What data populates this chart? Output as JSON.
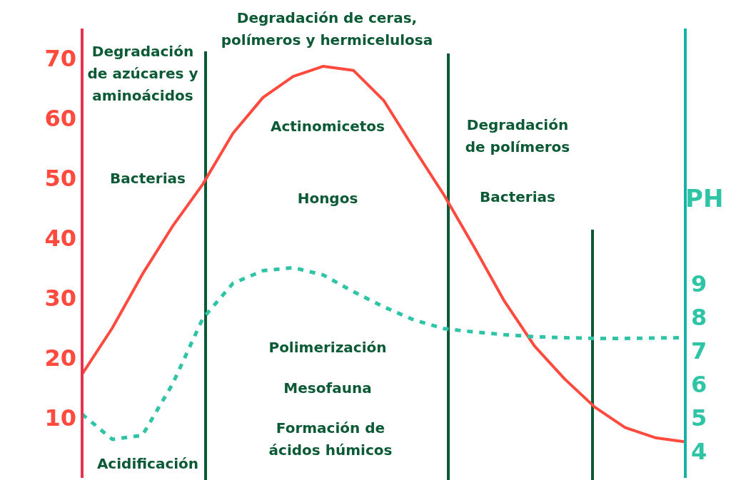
{
  "chart_data": {
    "type": "line",
    "y2label": "PH",
    "tick_labels": "y",
    "marker": "none",
    "categories": [
      null,
      null,
      null,
      null,
      null,
      null,
      null,
      null,
      null,
      null,
      null,
      null,
      null,
      null,
      null,
      null,
      null,
      null,
      null,
      null,
      null
    ],
    "ylim": [
      0,
      75
    ],
    "yticks": [
      10,
      20,
      30,
      40,
      50,
      60,
      70
    ],
    "y2lim": [
      3.2,
      16.6
    ],
    "y2ticks": [
      4,
      5,
      6,
      7,
      8,
      9
    ],
    "series": [
      {
        "color": "#ff4a3d",
        "line_style": "solid",
        "values": [
          17.3,
          25,
          34,
          42,
          49,
          57.5,
          63.5,
          67,
          68.7,
          68,
          63,
          55,
          47.2,
          38.5,
          29.5,
          22,
          16.5,
          11.8,
          8.4,
          6.7,
          6.0
        ]
      },
      {
        "color": "#2ec4a5",
        "line_style": "dotted",
        "axis": "y2",
        "values": [
          5.1,
          4.35,
          4.47,
          6.0,
          7.95,
          9.0,
          9.38,
          9.47,
          9.25,
          8.75,
          8.3,
          7.91,
          7.65,
          7.55,
          7.47,
          7.41,
          7.38,
          7.36,
          7.36,
          7.37,
          7.38
        ]
      }
    ],
    "annotations": [
      "Degradación\nde azúcares y\naminoácidos",
      "Bacterias",
      "Acidificación",
      "Degradación de ceras,\npolímeros y hermicelulosa",
      "Actinomicetos",
      "Hongos",
      "Polimerización",
      "Mesofauna",
      "Formación de\nácidos húmicos",
      "Degradación\nde polímeros",
      "Bacterias"
    ]
  }
}
